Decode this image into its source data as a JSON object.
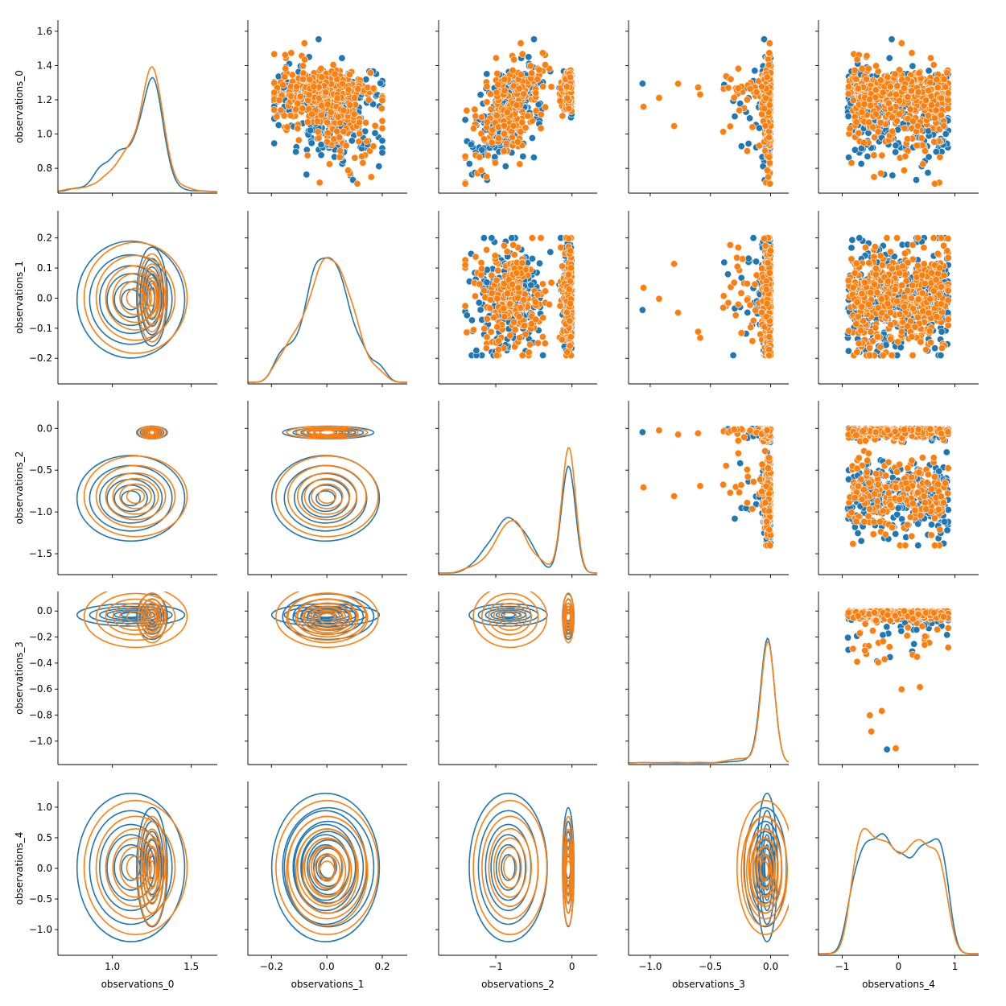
{
  "chart_data": {
    "type": "pairplot",
    "variables": [
      "observations_0",
      "observations_1",
      "observations_2",
      "observations_3",
      "observations_4"
    ],
    "hue_colors": [
      "#1f77b4",
      "#ff7f0e"
    ],
    "upper": "scatter",
    "lower": "kde",
    "diagonal": "kde",
    "axes": [
      {
        "name": "observations_0",
        "range": [
          0.655,
          1.665
        ],
        "ticks": [
          0.8,
          1.0,
          1.2,
          1.4,
          1.6
        ],
        "tick_labels": [
          "0.8",
          "1.0",
          "1.2",
          "1.4",
          "1.6"
        ],
        "x_ticks": [
          1.0,
          1.5
        ],
        "x_tick_labels": [
          "1.0",
          "1.5"
        ]
      },
      {
        "name": "observations_1",
        "range": [
          -0.285,
          0.29
        ],
        "ticks": [
          -0.2,
          -0.1,
          0.0,
          0.1,
          0.2
        ],
        "tick_labels": [
          "−0.2",
          "−0.1",
          "0.0",
          "0.1",
          "0.2"
        ],
        "x_ticks": [
          -0.2,
          0.0,
          0.2
        ],
        "x_tick_labels": [
          "−0.2",
          "0.0",
          "0.2"
        ]
      },
      {
        "name": "observations_2",
        "range": [
          -1.75,
          0.33
        ],
        "ticks": [
          -1.5,
          -1.0,
          -0.5,
          0.0
        ],
        "tick_labels": [
          "−1.5",
          "−1.0",
          "−0.5",
          "0.0"
        ],
        "x_ticks": [
          -1,
          0
        ],
        "x_tick_labels": [
          "−1",
          "0"
        ]
      },
      {
        "name": "observations_3",
        "range": [
          -1.18,
          0.15
        ],
        "ticks": [
          -1.0,
          -0.8,
          -0.6,
          -0.4,
          -0.2,
          0.0
        ],
        "tick_labels": [
          "−1.0",
          "−0.8",
          "−0.6",
          "−0.4",
          "−0.2",
          "0.0"
        ],
        "x_ticks": [
          -1.0,
          -0.5,
          0.0
        ],
        "x_tick_labels": [
          "−1.0",
          "−0.5",
          "0.0"
        ]
      },
      {
        "name": "observations_4",
        "range": [
          -1.42,
          1.42
        ],
        "ticks": [
          -1.0,
          -0.5,
          0.0,
          0.5,
          1.0
        ],
        "tick_labels": [
          "−1.0",
          "−0.5",
          "0.0",
          "0.5",
          "1.0"
        ],
        "x_ticks": [
          -1,
          0,
          1
        ],
        "x_tick_labels": [
          "−1",
          "0",
          "1"
        ]
      }
    ],
    "diag_peak_location": [
      1.25,
      0.0,
      -0.02,
      -0.01,
      0.8
    ],
    "scatter_points_per_panel": 430
  }
}
